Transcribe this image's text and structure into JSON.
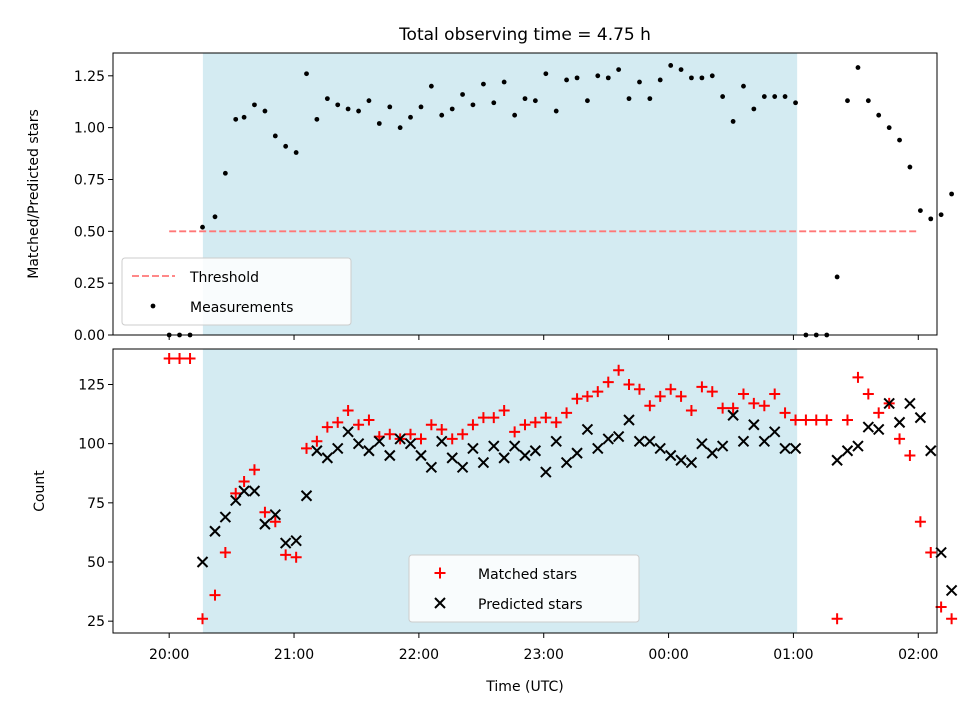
{
  "chart_data": [
    {
      "type": "scatter",
      "title": "Total observing time = 4.75 h",
      "ylabel": "Matched/Predicted stars",
      "xlabel": "",
      "x_range_hours": [
        19.55,
        26.15
      ],
      "ylim": [
        0,
        1.36
      ],
      "yticks": [
        0,
        0.25,
        0.5,
        0.75,
        1.0,
        1.25
      ],
      "ytick_labels": [
        "0.00",
        "0.25",
        "0.50",
        "0.75",
        "1.00",
        "1.25"
      ],
      "shaded_span_hours": [
        20.27,
        25.03
      ],
      "shade_color": "#d4ebf2",
      "threshold": {
        "name": "Threshold",
        "value": 0.5,
        "x_from": 20.0,
        "x_to": 26.0,
        "color": "#ff7777"
      },
      "legend": {
        "position": "lower-left",
        "entries": [
          "Threshold",
          "Measurements"
        ]
      },
      "series": [
        {
          "name": "Measurements",
          "marker": "dot",
          "color": "#000000",
          "x": [
            20.0,
            20.083,
            20.167,
            20.267,
            20.367,
            20.45,
            20.533,
            20.6,
            20.683,
            20.767,
            20.85,
            20.933,
            21.017,
            21.1,
            21.183,
            21.267,
            21.35,
            21.433,
            21.517,
            21.6,
            21.683,
            21.767,
            21.85,
            21.933,
            22.017,
            22.1,
            22.183,
            22.267,
            22.35,
            22.433,
            22.517,
            22.6,
            22.683,
            22.767,
            22.85,
            22.933,
            23.017,
            23.1,
            23.183,
            23.267,
            23.35,
            23.433,
            23.517,
            23.6,
            23.683,
            23.767,
            23.85,
            23.933,
            24.017,
            24.1,
            24.183,
            24.267,
            24.35,
            24.433,
            24.517,
            24.6,
            24.683,
            24.767,
            24.85,
            24.933,
            25.017,
            25.1,
            25.183,
            25.267,
            25.35,
            25.433,
            25.517,
            25.6,
            25.683,
            25.767,
            25.85,
            25.933,
            26.017,
            26.1,
            26.183,
            26.267
          ],
          "y": [
            0,
            0,
            0,
            0.52,
            0.57,
            0.78,
            1.04,
            1.05,
            1.11,
            1.08,
            0.96,
            0.91,
            0.88,
            1.26,
            1.04,
            1.14,
            1.11,
            1.09,
            1.08,
            1.13,
            1.02,
            1.1,
            1.0,
            1.05,
            1.1,
            1.2,
            1.06,
            1.09,
            1.16,
            1.11,
            1.21,
            1.12,
            1.22,
            1.06,
            1.14,
            1.13,
            1.26,
            1.08,
            1.23,
            1.24,
            1.13,
            1.25,
            1.24,
            1.28,
            1.14,
            1.22,
            1.14,
            1.23,
            1.3,
            1.28,
            1.24,
            1.24,
            1.25,
            1.15,
            1.03,
            1.2,
            1.09,
            1.15,
            1.15,
            1.15,
            1.12,
            0,
            0,
            0,
            0.28,
            1.13,
            1.29,
            1.13,
            1.06,
            1.0,
            0.94,
            0.81,
            0.6,
            0.56,
            0.58,
            0.68
          ]
        }
      ]
    },
    {
      "type": "scatter",
      "title": "",
      "ylabel": "Count",
      "xlabel": "Time (UTC)",
      "x_range_hours": [
        19.55,
        26.15
      ],
      "ylim": [
        20,
        140
      ],
      "yticks": [
        25,
        50,
        75,
        100,
        125
      ],
      "ytick_labels": [
        "25",
        "50",
        "75",
        "100",
        "125"
      ],
      "xticks_hours": [
        20,
        21,
        22,
        23,
        24,
        25,
        26
      ],
      "xtick_labels": [
        "20:00",
        "21:00",
        "22:00",
        "23:00",
        "00:00",
        "01:00",
        "02:00"
      ],
      "shaded_span_hours": [
        20.27,
        25.03
      ],
      "shade_color": "#d4ebf2",
      "legend": {
        "position": "lower-center",
        "entries": [
          "Matched stars",
          "Predicted stars"
        ]
      },
      "series": [
        {
          "name": "Matched stars",
          "marker": "plus",
          "color": "#ff0000",
          "x": [
            20.0,
            20.083,
            20.167,
            20.267,
            20.367,
            20.45,
            20.533,
            20.6,
            20.683,
            20.767,
            20.85,
            20.933,
            21.017,
            21.1,
            21.183,
            21.267,
            21.35,
            21.433,
            21.517,
            21.6,
            21.683,
            21.767,
            21.85,
            21.933,
            22.017,
            22.1,
            22.183,
            22.267,
            22.35,
            22.433,
            22.517,
            22.6,
            22.683,
            22.767,
            22.85,
            22.933,
            23.017,
            23.1,
            23.183,
            23.267,
            23.35,
            23.433,
            23.517,
            23.6,
            23.683,
            23.767,
            23.85,
            23.933,
            24.017,
            24.1,
            24.183,
            24.267,
            24.35,
            24.433,
            24.517,
            24.6,
            24.683,
            24.767,
            24.85,
            24.933,
            25.017,
            25.1,
            25.183,
            25.267,
            25.35,
            25.433,
            25.517,
            25.6,
            25.683,
            25.767,
            25.85,
            25.933,
            26.017,
            26.1,
            26.183,
            26.267
          ],
          "y": [
            136,
            136,
            136,
            26,
            36,
            54,
            79,
            84,
            89,
            71,
            67,
            53,
            52,
            98,
            101,
            107,
            109,
            114,
            108,
            110,
            103,
            104,
            102,
            104,
            102,
            108,
            106,
            102,
            104,
            108,
            111,
            111,
            114,
            105,
            108,
            109,
            111,
            109,
            113,
            119,
            120,
            122,
            126,
            131,
            125,
            123,
            116,
            120,
            123,
            120,
            114,
            124,
            122,
            115,
            115,
            121,
            117,
            116,
            121,
            113,
            110,
            110,
            110,
            110,
            26,
            110,
            128,
            121,
            113,
            117,
            102,
            95,
            67,
            54,
            31,
            26
          ]
        },
        {
          "name": "Predicted stars",
          "marker": "x",
          "color": "#000000",
          "x": [
            20.267,
            20.367,
            20.45,
            20.533,
            20.6,
            20.683,
            20.767,
            20.85,
            20.933,
            21.017,
            21.1,
            21.183,
            21.267,
            21.35,
            21.433,
            21.517,
            21.6,
            21.683,
            21.767,
            21.85,
            21.933,
            22.017,
            22.1,
            22.183,
            22.267,
            22.35,
            22.433,
            22.517,
            22.6,
            22.683,
            22.767,
            22.85,
            22.933,
            23.017,
            23.1,
            23.183,
            23.267,
            23.35,
            23.433,
            23.517,
            23.6,
            23.683,
            23.767,
            23.85,
            23.933,
            24.017,
            24.1,
            24.183,
            24.267,
            24.35,
            24.433,
            24.517,
            24.6,
            24.683,
            24.767,
            24.85,
            24.933,
            25.017,
            25.35,
            25.433,
            25.517,
            25.6,
            25.683,
            25.767,
            25.85,
            25.933,
            26.017,
            26.1,
            26.183,
            26.267
          ],
          "y": [
            50,
            63,
            69,
            76,
            80,
            80,
            66,
            70,
            58,
            59,
            78,
            97,
            94,
            98,
            105,
            100,
            97,
            101,
            95,
            102,
            100,
            95,
            90,
            101,
            94,
            90,
            98,
            92,
            99,
            94,
            99,
            95,
            97,
            88,
            101,
            92,
            96,
            106,
            98,
            102,
            103,
            110,
            101,
            101,
            98,
            95,
            93,
            92,
            100,
            96,
            99,
            112,
            101,
            108,
            101,
            105,
            98,
            98,
            93,
            97,
            99,
            107,
            106,
            117,
            109,
            117,
            111,
            97,
            54,
            38
          ]
        }
      ]
    }
  ]
}
